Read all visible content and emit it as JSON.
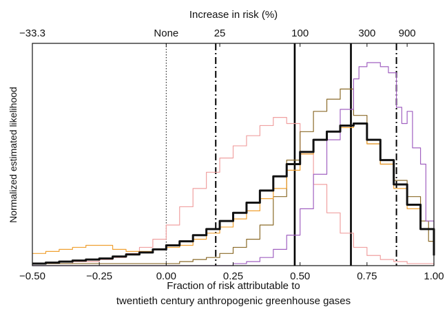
{
  "chart_data": {
    "type": "line",
    "title": "",
    "top_axis": {
      "label": "Increase in risk (%)",
      "ticks": [
        {
          "label": "−33.3",
          "x": -0.5
        },
        {
          "label": "None",
          "x": 0.0
        },
        {
          "label": "25",
          "x": 0.2
        },
        {
          "label": "100",
          "x": 0.5
        },
        {
          "label": "300",
          "x": 0.75
        },
        {
          "label": "900",
          "x": 0.9
        }
      ]
    },
    "xlabel_line1": "Fraction of risk attributable to",
    "xlabel_line2": "twentieth century anthropogenic greenhouse gases",
    "ylabel": "Normalized estimated likelihood",
    "xlim": [
      -0.5,
      1.0
    ],
    "ylim": [
      0,
      1.0
    ],
    "xticks": [
      {
        "label": "−0.50",
        "x": -0.5
      },
      {
        "label": "−0.25",
        "x": -0.25
      },
      {
        "label": "0.00",
        "x": 0.0
      },
      {
        "label": "0.25",
        "x": 0.25
      },
      {
        "label": "0.50",
        "x": 0.5
      },
      {
        "label": "0.75",
        "x": 0.75
      },
      {
        "label": "1.00",
        "x": 1.0
      }
    ],
    "vlines": [
      {
        "x": 0.0,
        "style": "dotted",
        "color": "#000000"
      },
      {
        "x": 0.185,
        "style": "dashdot",
        "color": "#000000"
      },
      {
        "x": 0.48,
        "style": "solid",
        "color": "#000000"
      },
      {
        "x": 0.69,
        "style": "solid",
        "color": "#000000"
      },
      {
        "x": 0.86,
        "style": "dashdot",
        "color": "#000000"
      }
    ],
    "series": [
      {
        "color": "#f0a0a0",
        "width": 1.2,
        "x": [
          -0.5,
          -0.45,
          -0.4,
          -0.35,
          -0.3,
          -0.25,
          -0.2,
          -0.15,
          -0.1,
          -0.05,
          0.0,
          0.05,
          0.1,
          0.15,
          0.2,
          0.25,
          0.3,
          0.35,
          0.4,
          0.45,
          0.5,
          0.55,
          0.6,
          0.65,
          0.7,
          0.75,
          0.8,
          0.85,
          0.9,
          0.95,
          1.0
        ],
        "y": [
          0.01,
          0.01,
          0.01,
          0.02,
          0.02,
          0.03,
          0.04,
          0.06,
          0.09,
          0.13,
          0.2,
          0.29,
          0.38,
          0.46,
          0.53,
          0.59,
          0.64,
          0.69,
          0.73,
          0.7,
          0.55,
          0.4,
          0.26,
          0.16,
          0.09,
          0.05,
          0.03,
          0.02,
          0.01,
          0.01,
          0.0
        ]
      },
      {
        "color": "#8a6a28",
        "width": 1.2,
        "x": [
          -0.5,
          -0.4,
          -0.3,
          -0.2,
          -0.1,
          0.0,
          0.05,
          0.1,
          0.15,
          0.2,
          0.25,
          0.3,
          0.35,
          0.4,
          0.45,
          0.5,
          0.55,
          0.6,
          0.65,
          0.7,
          0.75,
          0.8,
          0.85,
          0.9,
          0.95,
          0.98,
          1.0
        ],
        "y": [
          0.01,
          0.01,
          0.01,
          0.01,
          0.01,
          0.01,
          0.02,
          0.03,
          0.04,
          0.06,
          0.09,
          0.13,
          0.2,
          0.34,
          0.52,
          0.66,
          0.76,
          0.82,
          0.87,
          0.74,
          0.6,
          0.5,
          0.42,
          0.34,
          0.22,
          0.12,
          0.05
        ]
      },
      {
        "color": "#a060c0",
        "width": 1.2,
        "x": [
          -0.5,
          -0.3,
          -0.1,
          0.1,
          0.2,
          0.25,
          0.3,
          0.35,
          0.4,
          0.45,
          0.5,
          0.55,
          0.6,
          0.65,
          0.7,
          0.72,
          0.75,
          0.8,
          0.83,
          0.86,
          0.88,
          0.9,
          0.92,
          0.95,
          0.97,
          1.0
        ],
        "y": [
          0.0,
          0.0,
          0.0,
          0.0,
          0.0,
          0.01,
          0.02,
          0.04,
          0.08,
          0.15,
          0.28,
          0.45,
          0.62,
          0.77,
          0.92,
          0.98,
          1.0,
          0.98,
          0.95,
          0.78,
          0.7,
          0.76,
          0.58,
          0.5,
          0.22,
          0.1
        ]
      },
      {
        "color": "#f0a030",
        "width": 1.2,
        "x": [
          -0.5,
          -0.45,
          -0.4,
          -0.35,
          -0.3,
          -0.25,
          -0.2,
          -0.15,
          -0.1,
          -0.05,
          0.0,
          0.05,
          0.1,
          0.15,
          0.2,
          0.25,
          0.3,
          0.35,
          0.4,
          0.45,
          0.5,
          0.55,
          0.6,
          0.65,
          0.7,
          0.75,
          0.8,
          0.85,
          0.9,
          0.95,
          1.0
        ],
        "y": [
          0.06,
          0.07,
          0.08,
          0.09,
          0.1,
          0.1,
          0.08,
          0.07,
          0.07,
          0.08,
          0.09,
          0.1,
          0.13,
          0.16,
          0.19,
          0.23,
          0.27,
          0.33,
          0.38,
          0.47,
          0.55,
          0.62,
          0.66,
          0.68,
          0.7,
          0.6,
          0.5,
          0.38,
          0.28,
          0.18,
          0.06
        ]
      },
      {
        "color": "#111111",
        "width": 3.0,
        "x": [
          -0.5,
          -0.45,
          -0.4,
          -0.35,
          -0.3,
          -0.25,
          -0.2,
          -0.15,
          -0.1,
          -0.05,
          0.0,
          0.05,
          0.1,
          0.15,
          0.2,
          0.25,
          0.3,
          0.35,
          0.4,
          0.45,
          0.5,
          0.55,
          0.6,
          0.65,
          0.7,
          0.75,
          0.8,
          0.85,
          0.9,
          0.95,
          1.0
        ],
        "y": [
          0.01,
          0.015,
          0.02,
          0.025,
          0.03,
          0.035,
          0.045,
          0.055,
          0.065,
          0.08,
          0.1,
          0.12,
          0.15,
          0.18,
          0.22,
          0.26,
          0.31,
          0.37,
          0.44,
          0.5,
          0.56,
          0.62,
          0.66,
          0.69,
          0.7,
          0.62,
          0.52,
          0.4,
          0.3,
          0.18,
          0.05
        ]
      }
    ]
  }
}
